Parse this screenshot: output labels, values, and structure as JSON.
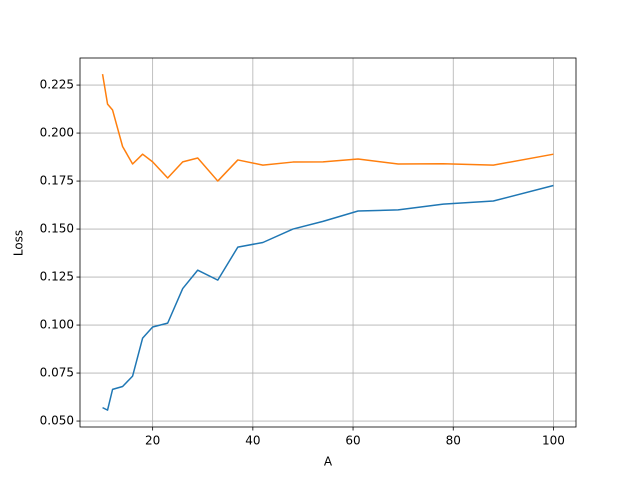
{
  "chart_data": {
    "type": "line",
    "xlabel": "A",
    "ylabel": "Loss",
    "x": [
      10,
      11,
      12,
      14,
      16,
      18,
      20,
      23,
      26,
      29,
      33,
      37,
      42,
      48,
      54,
      61,
      69,
      78,
      88,
      100
    ],
    "series": [
      {
        "color": "#1f77b4",
        "values": [
          0.057,
          0.0557,
          0.0665,
          0.068,
          0.0734,
          0.0932,
          0.099,
          0.101,
          0.119,
          0.1286,
          0.1234,
          0.1406,
          0.143,
          0.15,
          0.154,
          0.1594,
          0.16,
          0.163,
          0.1646,
          0.1727
        ]
      },
      {
        "color": "#ff7f0e",
        "values": [
          0.2307,
          0.2151,
          0.212,
          0.193,
          0.1839,
          0.189,
          0.185,
          0.1766,
          0.185,
          0.187,
          0.175,
          0.186,
          0.1833,
          0.1849,
          0.185,
          0.1865,
          0.1839,
          0.184,
          0.1833,
          0.189
        ]
      }
    ],
    "xlim": [
      5.5,
      104.5
    ],
    "xticks": [
      20,
      40,
      60,
      80,
      100
    ],
    "ylim": [
      0.0469,
      0.2391
    ],
    "yticks": [
      {
        "value": 0.05,
        "label": "0.050"
      },
      0.075,
      {
        "value": 0.1,
        "label": "0.100"
      },
      0.125,
      {
        "value": 0.15,
        "label": "0.150"
      },
      0.175,
      {
        "value": 0.2,
        "label": "0.200"
      },
      0.225
    ],
    "grid": true
  }
}
